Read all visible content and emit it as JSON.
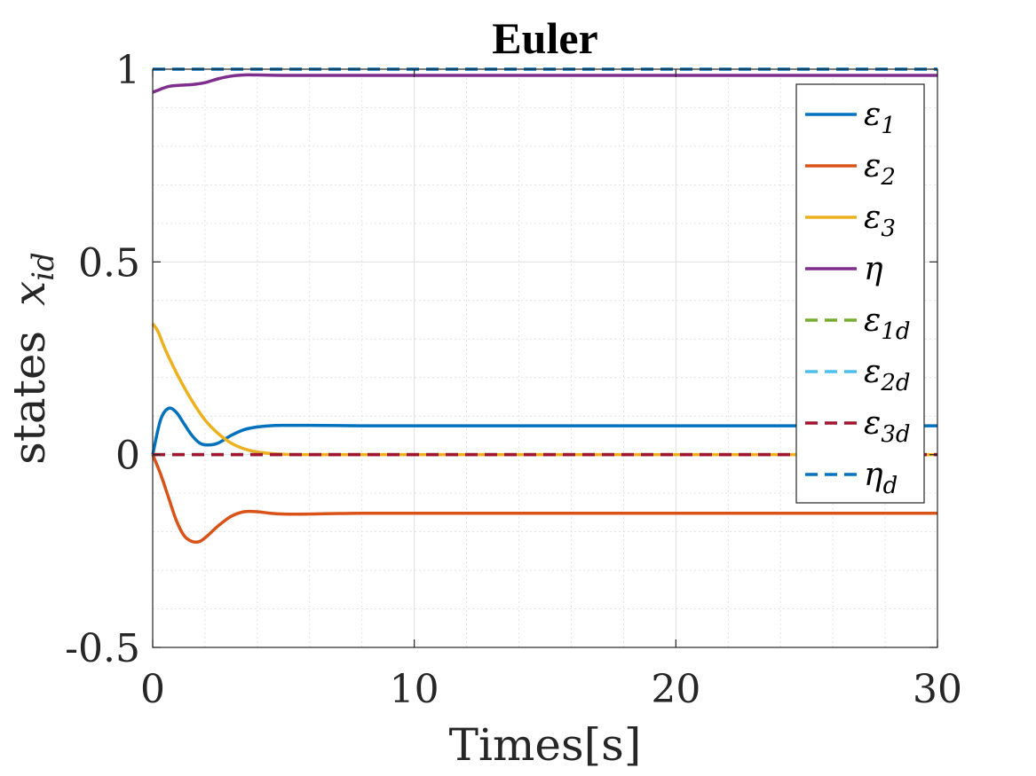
{
  "chart_data": {
    "type": "line",
    "title": "Euler",
    "xlabel": "Times[s]",
    "ylabel": "states",
    "ylabel_math": "x",
    "ylabel_math_sub": "id",
    "xlim": [
      0,
      30
    ],
    "ylim": [
      -0.5,
      1
    ],
    "xticks": [
      0,
      10,
      20,
      30
    ],
    "xtick_labels": [
      "0",
      "10",
      "20",
      "30"
    ],
    "yticks": [
      -0.5,
      0,
      0.5,
      1
    ],
    "ytick_labels": [
      "-0.5",
      "0",
      "0.5",
      "1"
    ],
    "grid": true,
    "minor_grid": true,
    "legend_position": "top-right",
    "series": [
      {
        "name": "ε1",
        "symbol": "ε",
        "sub": "1",
        "color": "#0072BD",
        "style": "solid",
        "x": [
          0,
          0.3,
          0.6,
          0.9,
          1.2,
          1.5,
          1.8,
          2.1,
          2.5,
          3.0,
          3.5,
          4.0,
          4.5,
          5.0,
          6.0,
          8.0,
          12.0,
          20.0,
          30.0
        ],
        "y": [
          0,
          0.09,
          0.12,
          0.11,
          0.08,
          0.05,
          0.03,
          0.025,
          0.03,
          0.05,
          0.065,
          0.072,
          0.075,
          0.076,
          0.076,
          0.075,
          0.075,
          0.075,
          0.075
        ]
      },
      {
        "name": "ε2",
        "symbol": "ε",
        "sub": "2",
        "color": "#D95319",
        "style": "solid",
        "x": [
          0,
          0.3,
          0.6,
          0.9,
          1.2,
          1.5,
          1.8,
          2.1,
          2.5,
          3.0,
          3.5,
          4.0,
          4.5,
          5.0,
          6.0,
          8.0,
          12.0,
          20.0,
          30.0
        ],
        "y": [
          0,
          -0.05,
          -0.11,
          -0.17,
          -0.21,
          -0.225,
          -0.225,
          -0.21,
          -0.185,
          -0.16,
          -0.148,
          -0.148,
          -0.152,
          -0.154,
          -0.154,
          -0.152,
          -0.152,
          -0.152,
          -0.152
        ]
      },
      {
        "name": "ε3",
        "symbol": "ε",
        "sub": "3",
        "color": "#EDB120",
        "style": "solid",
        "x": [
          0,
          0.2,
          0.5,
          1.0,
          1.5,
          2.0,
          2.5,
          3.0,
          3.5,
          4.0,
          4.5,
          5.0,
          6.0,
          7.0,
          8.0,
          30.0
        ],
        "y": [
          0.34,
          0.32,
          0.27,
          0.2,
          0.14,
          0.09,
          0.055,
          0.03,
          0.015,
          0.007,
          0.003,
          0.001,
          0,
          0,
          0,
          0
        ]
      },
      {
        "name": "η",
        "symbol": "η",
        "sub": "",
        "color": "#7E2F8E",
        "style": "solid",
        "x": [
          0,
          0.3,
          0.6,
          1.0,
          1.5,
          2.0,
          2.5,
          3.0,
          3.5,
          4.0,
          5.0,
          6.0,
          8.0,
          30.0
        ],
        "y": [
          0.94,
          0.948,
          0.955,
          0.958,
          0.96,
          0.965,
          0.975,
          0.982,
          0.985,
          0.985,
          0.984,
          0.984,
          0.984,
          0.984
        ]
      },
      {
        "name": "ε1d",
        "symbol": "ε",
        "sub": "1d",
        "color": "#77AC30",
        "style": "dashed",
        "x": [
          0,
          30
        ],
        "y": [
          0,
          0
        ]
      },
      {
        "name": "ε2d",
        "symbol": "ε",
        "sub": "2d",
        "color": "#4DBEEE",
        "style": "dashed",
        "x": [
          0,
          30
        ],
        "y": [
          0,
          0
        ]
      },
      {
        "name": "ε3d",
        "symbol": "ε",
        "sub": "3d",
        "color": "#A2142F",
        "style": "dashed",
        "x": [
          0,
          30
        ],
        "y": [
          0,
          0
        ]
      },
      {
        "name": "ηd",
        "symbol": "η",
        "sub": "d",
        "color": "#0072BD",
        "style": "dashed",
        "x": [
          0,
          30
        ],
        "y": [
          1,
          1
        ]
      }
    ]
  }
}
